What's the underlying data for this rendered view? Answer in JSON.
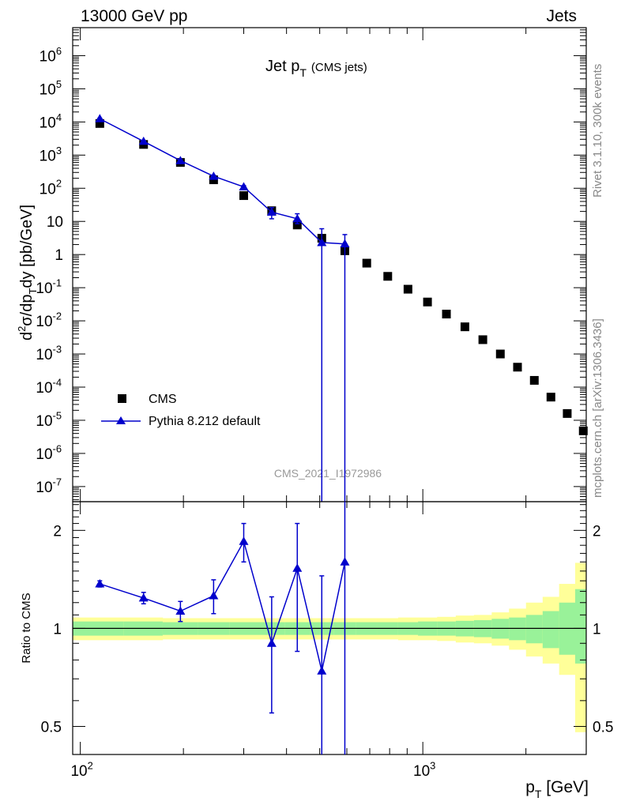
{
  "header": {
    "left": "13000 GeV pp",
    "right": "Jets"
  },
  "side_text": {
    "top": "Rivet 3.1.10,  300k events",
    "bottom": "mcplots.cern.ch [arXiv:1306.3436]"
  },
  "analysis_id": "CMS_2021_I1972986",
  "colors": {
    "mc": "#0000cc",
    "data": "#000000",
    "band_inner": "#99f299",
    "band_outer": "#ffff99",
    "side_text": "#888888"
  },
  "chart_data": [
    {
      "type": "scatter",
      "title_main": "Jet p",
      "title_sub": "T",
      "title_note": "(CMS jets)",
      "ylabel": "d²σ/dp_T dy [pb/GeV]",
      "xlabel": "p_T [GeV]",
      "x_scale": "log",
      "y_scale": "log",
      "xlim": [
        95,
        3000
      ],
      "ylim": [
        3.5e-08,
        7000000.0
      ],
      "y_tick_labels": [
        "10^-7",
        "10^-6",
        "10^-5",
        "10^-4",
        "10^-3",
        "10^-2",
        "10^-1",
        "1",
        "10",
        "10^2",
        "10^3",
        "10^4",
        "10^5",
        "10^6"
      ],
      "legend": {
        "position": "bottom-left",
        "entries": [
          "CMS",
          "Pythia 8.212 default"
        ]
      },
      "series": [
        {
          "name": "CMS",
          "marker": "square",
          "x": [
            114,
            153,
            196,
            245,
            300,
            362,
            430,
            507,
            592,
            686,
            790,
            905,
            1032,
            1172,
            1327,
            1497,
            1684,
            1890,
            2116,
            2366,
            2640,
            2941
          ],
          "y": [
            9000,
            2100,
            600,
            180,
            60,
            21,
            7.8,
            3.1,
            1.3,
            0.55,
            0.22,
            0.09,
            0.037,
            0.016,
            0.0066,
            0.0027,
            0.001,
            0.0004,
            0.00016,
            5e-05,
            1.6e-05,
            4.8e-06
          ]
        },
        {
          "name": "Pythia 8.212 default",
          "marker": "triangle",
          "x": [
            114,
            153,
            196,
            245,
            300,
            362,
            430,
            507,
            592
          ],
          "y": [
            12500,
            2600,
            680,
            230,
            110,
            19,
            12,
            2.3,
            2.1
          ],
          "yerr_low": [
            12000,
            2500,
            640,
            215,
            100,
            12,
            8.5,
            1e-09,
            1e-09
          ],
          "yerr_high": [
            13000,
            2700,
            720,
            245,
            120,
            26,
            17,
            6,
            4
          ]
        }
      ]
    },
    {
      "type": "scatter",
      "ylabel": "Ratio to CMS",
      "x_scale": "log",
      "y_scale": "log",
      "xlim": [
        95,
        3000
      ],
      "ylim": [
        0.41,
        2.45
      ],
      "y_ticks": [
        0.5,
        1,
        2
      ],
      "y_tick_labels": [
        "0.5",
        "1",
        "2"
      ],
      "x_tick_labels": [
        "10^2",
        "10^3"
      ],
      "series": [
        {
          "name": "Pythia 8.212 default",
          "x": [
            114,
            153,
            196,
            245,
            300,
            362,
            430,
            507,
            592
          ],
          "y": [
            1.37,
            1.24,
            1.13,
            1.26,
            1.85,
            0.9,
            1.53,
            0.74,
            1.6
          ],
          "yerr_low": [
            1.34,
            1.19,
            1.05,
            1.11,
            1.6,
            0.55,
            0.85,
            0.3,
            0.3
          ],
          "yerr_high": [
            1.4,
            1.29,
            1.21,
            1.41,
            2.1,
            1.25,
            2.1,
            1.45,
            2.5
          ]
        }
      ],
      "uncertainty_band": {
        "x_edges": [
          95,
          134,
          174,
          220,
          273,
          331,
          396,
          468,
          549,
          639,
          738,
          847,
          968,
          1101,
          1248,
          1410,
          1589,
          1785,
          2001,
          2238,
          2500,
          2785,
          3000
        ],
        "inner_low": [
          0.95,
          0.95,
          0.955,
          0.955,
          0.955,
          0.955,
          0.955,
          0.955,
          0.955,
          0.955,
          0.955,
          0.955,
          0.95,
          0.95,
          0.945,
          0.94,
          0.93,
          0.92,
          0.9,
          0.87,
          0.83,
          0.78
        ],
        "inner_high": [
          1.05,
          1.05,
          1.045,
          1.045,
          1.045,
          1.045,
          1.045,
          1.045,
          1.045,
          1.045,
          1.045,
          1.045,
          1.05,
          1.05,
          1.055,
          1.06,
          1.07,
          1.08,
          1.1,
          1.13,
          1.2,
          1.32
        ],
        "outer_low": [
          0.92,
          0.92,
          0.925,
          0.925,
          0.925,
          0.925,
          0.925,
          0.925,
          0.925,
          0.925,
          0.925,
          0.92,
          0.92,
          0.915,
          0.905,
          0.9,
          0.885,
          0.86,
          0.82,
          0.78,
          0.72,
          0.48
        ],
        "outer_high": [
          1.08,
          1.08,
          1.075,
          1.075,
          1.075,
          1.075,
          1.075,
          1.075,
          1.075,
          1.075,
          1.075,
          1.08,
          1.08,
          1.085,
          1.095,
          1.1,
          1.12,
          1.15,
          1.2,
          1.25,
          1.37,
          1.59
        ]
      }
    }
  ]
}
